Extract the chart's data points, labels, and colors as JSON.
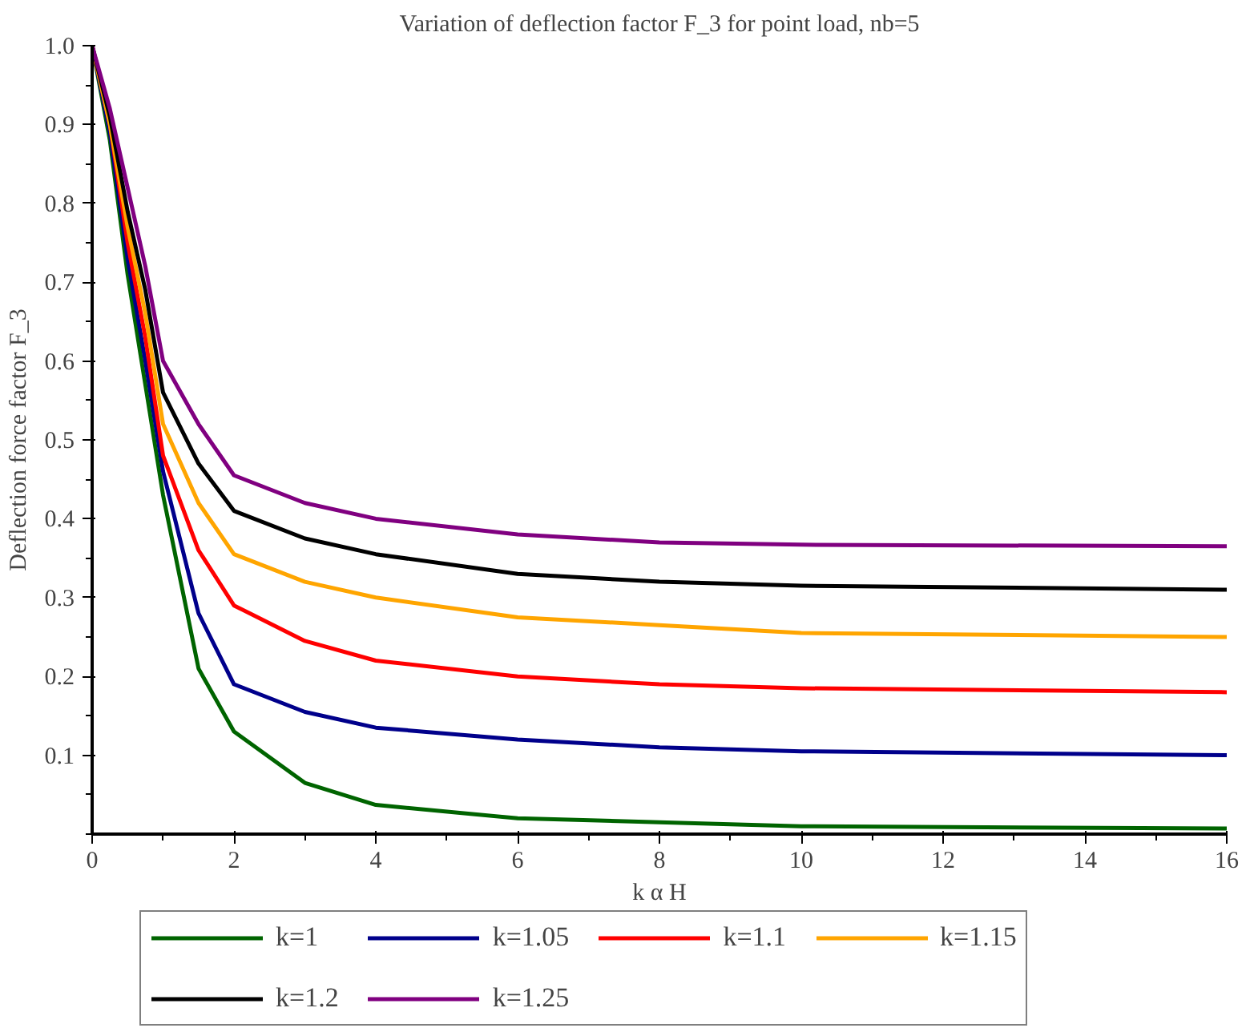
{
  "chart_data": {
    "type": "line",
    "title": "Variation of deflection factor F_3 for point load, nb=5",
    "xlabel": "k α H",
    "ylabel": "Deflection force factor F_3",
    "x": [
      0,
      0.25,
      0.5,
      0.75,
      1,
      1.5,
      2,
      3,
      4,
      6,
      8,
      10,
      16
    ],
    "series": [
      {
        "name": "k=1",
        "color": "#006400",
        "values": [
          1.0,
          0.88,
          0.71,
          0.57,
          0.43,
          0.21,
          0.13,
          0.065,
          0.037,
          0.02,
          0.015,
          0.01,
          0.007
        ]
      },
      {
        "name": "k=1.05",
        "color": "#00008b",
        "values": [
          1.0,
          0.89,
          0.73,
          0.6,
          0.46,
          0.28,
          0.19,
          0.155,
          0.135,
          0.12,
          0.11,
          0.105,
          0.1
        ]
      },
      {
        "name": "k=1.1",
        "color": "#ff0000",
        "values": [
          1.0,
          0.9,
          0.75,
          0.63,
          0.48,
          0.36,
          0.29,
          0.245,
          0.22,
          0.2,
          0.19,
          0.185,
          0.18
        ]
      },
      {
        "name": "k=1.15",
        "color": "#ffa500",
        "values": [
          1.0,
          0.9,
          0.77,
          0.66,
          0.52,
          0.42,
          0.355,
          0.32,
          0.3,
          0.275,
          0.265,
          0.255,
          0.25
        ]
      },
      {
        "name": "k=1.2",
        "color": "#000000",
        "values": [
          1.0,
          0.91,
          0.79,
          0.69,
          0.56,
          0.47,
          0.41,
          0.375,
          0.355,
          0.33,
          0.32,
          0.315,
          0.31
        ]
      },
      {
        "name": "k=1.25",
        "color": "#800080",
        "values": [
          1.0,
          0.92,
          0.82,
          0.72,
          0.6,
          0.52,
          0.455,
          0.42,
          0.4,
          0.38,
          0.37,
          0.367,
          0.365
        ]
      }
    ],
    "xlim": [
      0,
      16
    ],
    "ylim": [
      0,
      1.0
    ],
    "xticks": [
      0,
      2,
      4,
      6,
      8,
      10,
      12,
      14,
      16
    ],
    "yticks": [
      0.1,
      0.2,
      0.3,
      0.4,
      0.5,
      0.6,
      0.7,
      0.8,
      0.9,
      {
        "value": 1.0,
        "label": "1.0"
      }
    ],
    "grid": false,
    "legend": "bottom",
    "marker": "none",
    "line_style": "solid"
  }
}
